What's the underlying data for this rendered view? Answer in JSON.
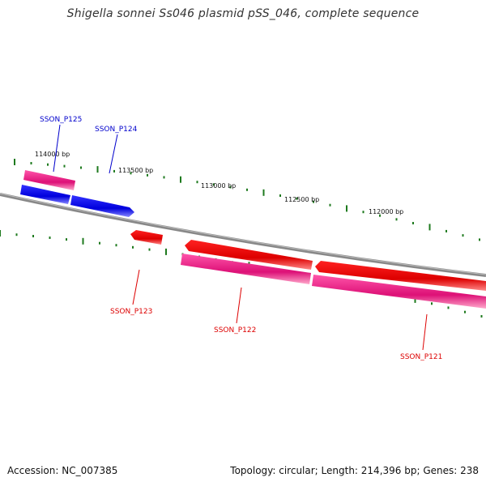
{
  "title": "Shigella sonnei Ss046 plasmid pSS_046, complete sequence",
  "footer": {
    "accession": "Accession: NC_007385",
    "summary": "Topology: circular; Length: 214,396 bp; Genes: 238"
  },
  "colors": {
    "backbone": "#888888",
    "tick": "#1e7a1e",
    "forward_gene": "#0000ee",
    "forward_cds": "#ee2288",
    "reverse_gene": "#ee0000",
    "reverse_cds": "#dd1177",
    "forward_label": "#0000cc",
    "reverse_label": "#dd0000"
  },
  "scale_labels": [
    "114000 bp",
    "113500 bp",
    "113000 bp",
    "112500 bp",
    "112000 bp"
  ],
  "genes": [
    {
      "name": "SSON_P125",
      "strand": "+"
    },
    {
      "name": "SSON_P124",
      "strand": "+"
    },
    {
      "name": "SSON_P123",
      "strand": "-"
    },
    {
      "name": "SSON_P122",
      "strand": "-"
    },
    {
      "name": "SSON_P121",
      "strand": "-"
    }
  ]
}
